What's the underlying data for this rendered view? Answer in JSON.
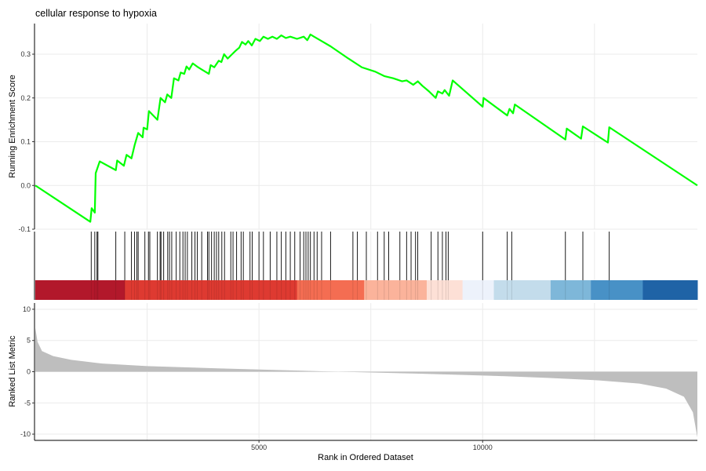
{
  "chart_data": {
    "type": "line",
    "title": "cellular response to hypoxia",
    "xlabel": "Rank in Ordered Dataset",
    "xlim": [
      0,
      14800
    ],
    "x_ticks": [
      "5000",
      "10000"
    ],
    "x_tick_values": [
      5000,
      10000
    ],
    "grid": "vertical gridlines only",
    "colors": {
      "running_score": "#00ff00",
      "hit_line": "#000000",
      "ranked_fill": "#bebebe",
      "axis": "#000000",
      "grid": "#ebebeb"
    },
    "running_score": {
      "ylabel": "Running Enrichment Score",
      "ylim": [
        -0.1,
        0.37
      ],
      "y_ticks": [
        "-0.1",
        "0.0",
        "0.1",
        "0.2",
        "0.3"
      ],
      "y_tick_values": [
        -0.1,
        0.0,
        0.1,
        0.2,
        0.3
      ],
      "points": [
        [
          0,
          0.0
        ],
        [
          1230,
          -0.083
        ],
        [
          1260,
          -0.052
        ],
        [
          1330,
          -0.062
        ],
        [
          1350,
          0.028
        ],
        [
          1440,
          0.055
        ],
        [
          1800,
          0.035
        ],
        [
          1830,
          0.057
        ],
        [
          1980,
          0.045
        ],
        [
          2040,
          0.07
        ],
        [
          2150,
          0.062
        ],
        [
          2220,
          0.092
        ],
        [
          2300,
          0.12
        ],
        [
          2400,
          0.11
        ],
        [
          2420,
          0.132
        ],
        [
          2500,
          0.128
        ],
        [
          2540,
          0.17
        ],
        [
          2730,
          0.15
        ],
        [
          2800,
          0.2
        ],
        [
          2900,
          0.19
        ],
        [
          2950,
          0.208
        ],
        [
          3040,
          0.2
        ],
        [
          3100,
          0.245
        ],
        [
          3200,
          0.24
        ],
        [
          3250,
          0.258
        ],
        [
          3330,
          0.255
        ],
        [
          3380,
          0.272
        ],
        [
          3440,
          0.265
        ],
        [
          3520,
          0.279
        ],
        [
          3640,
          0.27
        ],
        [
          3880,
          0.255
        ],
        [
          3920,
          0.275
        ],
        [
          4000,
          0.27
        ],
        [
          4100,
          0.285
        ],
        [
          4160,
          0.282
        ],
        [
          4220,
          0.3
        ],
        [
          4300,
          0.29
        ],
        [
          4400,
          0.3
        ],
        [
          4480,
          0.308
        ],
        [
          4560,
          0.315
        ],
        [
          4620,
          0.328
        ],
        [
          4700,
          0.322
        ],
        [
          4760,
          0.33
        ],
        [
          4840,
          0.32
        ],
        [
          4920,
          0.335
        ],
        [
          5020,
          0.33
        ],
        [
          5100,
          0.34
        ],
        [
          5200,
          0.335
        ],
        [
          5300,
          0.34
        ],
        [
          5400,
          0.335
        ],
        [
          5500,
          0.343
        ],
        [
          5600,
          0.337
        ],
        [
          5700,
          0.34
        ],
        [
          5850,
          0.335
        ],
        [
          6000,
          0.34
        ],
        [
          6080,
          0.332
        ],
        [
          6150,
          0.345
        ],
        [
          6230,
          0.34
        ],
        [
          6400,
          0.33
        ],
        [
          6600,
          0.318
        ],
        [
          7000,
          0.29
        ],
        [
          7300,
          0.27
        ],
        [
          7600,
          0.26
        ],
        [
          7800,
          0.25
        ],
        [
          8000,
          0.245
        ],
        [
          8200,
          0.238
        ],
        [
          8300,
          0.24
        ],
        [
          8450,
          0.23
        ],
        [
          8550,
          0.238
        ],
        [
          8650,
          0.228
        ],
        [
          8800,
          0.215
        ],
        [
          8950,
          0.2
        ],
        [
          9000,
          0.215
        ],
        [
          9100,
          0.21
        ],
        [
          9150,
          0.218
        ],
        [
          9250,
          0.205
        ],
        [
          9330,
          0.24
        ],
        [
          10000,
          0.18
        ],
        [
          10020,
          0.2
        ],
        [
          10550,
          0.16
        ],
        [
          10600,
          0.175
        ],
        [
          10680,
          0.165
        ],
        [
          10720,
          0.185
        ],
        [
          11850,
          0.105
        ],
        [
          11880,
          0.13
        ],
        [
          12200,
          0.107
        ],
        [
          12240,
          0.135
        ],
        [
          12800,
          0.098
        ],
        [
          12830,
          0.133
        ],
        [
          14800,
          0.0
        ]
      ]
    },
    "hits": [
      1250,
      1330,
      1380,
      1400,
      1800,
      2000,
      2150,
      2220,
      2270,
      2300,
      2450,
      2530,
      2560,
      2730,
      2790,
      2810,
      2870,
      2960,
      3000,
      3050,
      3150,
      3230,
      3300,
      3350,
      3400,
      3500,
      3570,
      3620,
      3720,
      3850,
      3880,
      3940,
      4000,
      4050,
      4100,
      4170,
      4230,
      4370,
      4420,
      4500,
      4600,
      4650,
      4800,
      4850,
      5000,
      5100,
      5250,
      5400,
      5500,
      5600,
      5700,
      5800,
      5920,
      6000,
      6050,
      6100,
      6150,
      6230,
      6300,
      6400,
      6600,
      7100,
      7200,
      7400,
      7650,
      7800,
      7900,
      8150,
      8300,
      8400,
      8500,
      8550,
      8850,
      9000,
      9100,
      9180,
      9230,
      10000,
      10550,
      10650,
      11850,
      12240,
      12830
    ],
    "colorbar": [
      {
        "from": 0,
        "to": 2000,
        "color": "#b2182b"
      },
      {
        "from": 2000,
        "to": 5850,
        "color": "#de3a31"
      },
      {
        "from": 5850,
        "to": 7350,
        "color": "#f46d52"
      },
      {
        "from": 7350,
        "to": 8750,
        "color": "#fbb39b"
      },
      {
        "from": 8750,
        "to": 9550,
        "color": "#fde0d6"
      },
      {
        "from": 9550,
        "to": 10250,
        "color": "#edf2fb"
      },
      {
        "from": 10250,
        "to": 11520,
        "color": "#c3dceb"
      },
      {
        "from": 11520,
        "to": 12420,
        "color": "#7eb7d9"
      },
      {
        "from": 12420,
        "to": 13580,
        "color": "#4891c6"
      },
      {
        "from": 13580,
        "to": 14800,
        "color": "#1f63a6"
      }
    ],
    "ranked_list": {
      "ylabel": "Ranked List Metric",
      "ylim": [
        -11,
        11
      ],
      "y_ticks": [
        "-10",
        "-5",
        "0",
        "5",
        "10"
      ],
      "y_tick_values": [
        -10,
        -5,
        0,
        5,
        10
      ],
      "points": [
        [
          0,
          7.0
        ],
        [
          50,
          4.8
        ],
        [
          150,
          3.3
        ],
        [
          400,
          2.5
        ],
        [
          800,
          1.9
        ],
        [
          1500,
          1.3
        ],
        [
          2500,
          0.9
        ],
        [
          4000,
          0.55
        ],
        [
          5500,
          0.25
        ],
        [
          6500,
          0.05
        ],
        [
          7500,
          -0.12
        ],
        [
          8500,
          -0.3
        ],
        [
          9500,
          -0.5
        ],
        [
          10500,
          -0.72
        ],
        [
          11500,
          -1.0
        ],
        [
          12500,
          -1.35
        ],
        [
          13500,
          -1.9
        ],
        [
          14100,
          -2.7
        ],
        [
          14500,
          -4.0
        ],
        [
          14700,
          -6.5
        ],
        [
          14800,
          -10.5
        ]
      ]
    }
  }
}
